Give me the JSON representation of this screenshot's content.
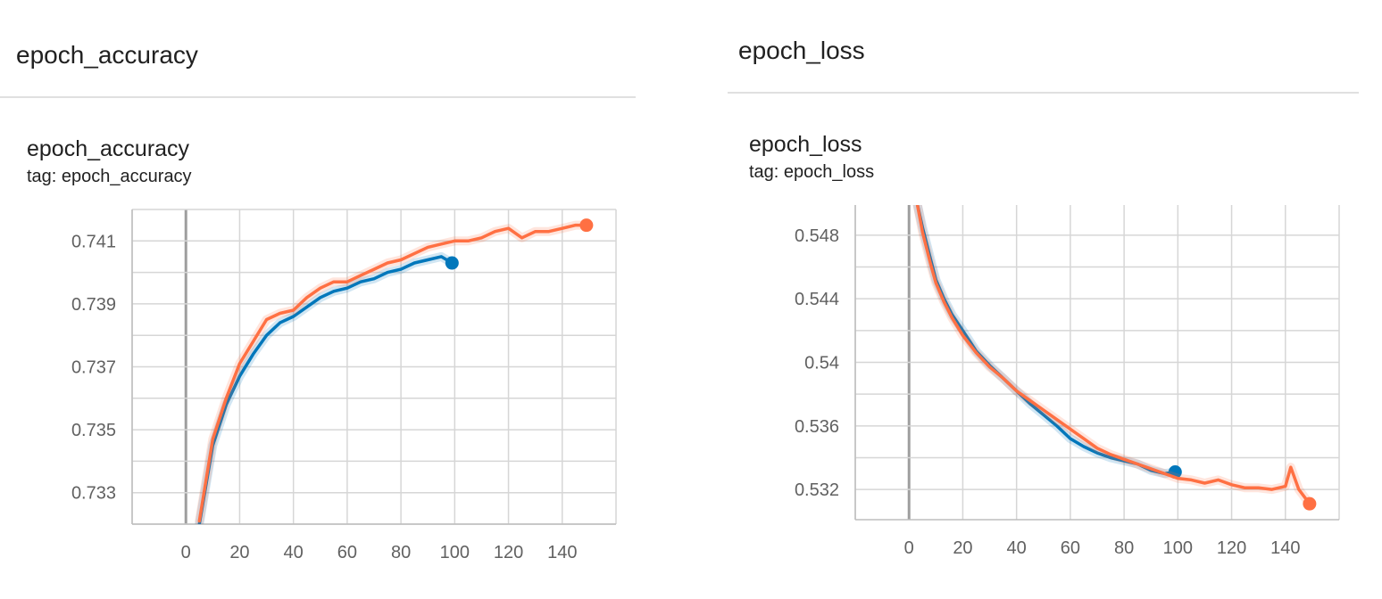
{
  "panels": {
    "accuracy": {
      "group_title": "epoch_accuracy",
      "card_title": "epoch_accuracy",
      "tag": "tag: epoch_accuracy"
    },
    "loss": {
      "group_title": "epoch_loss",
      "card_title": "epoch_loss",
      "tag": "tag: epoch_loss"
    }
  },
  "colors": {
    "blue": "#0077bb",
    "orange": "#ff7043"
  },
  "chart_data": [
    {
      "type": "line",
      "title": "epoch_accuracy",
      "xlabel": "",
      "ylabel": "",
      "xlim": [
        -20,
        160
      ],
      "ylim": [
        0.732,
        0.742
      ],
      "x_ticks": [
        "0",
        "20",
        "40",
        "60",
        "80",
        "100",
        "120",
        "140"
      ],
      "y_ticks": [
        "0.733",
        "0.735",
        "0.737",
        "0.739",
        "0.741"
      ],
      "grid": true,
      "series": [
        {
          "color": "#0077bb",
          "x": [
            5,
            10,
            15,
            20,
            25,
            30,
            35,
            40,
            45,
            50,
            55,
            60,
            65,
            70,
            75,
            80,
            85,
            90,
            95,
            99
          ],
          "values": [
            0.732,
            0.7345,
            0.7358,
            0.7367,
            0.7374,
            0.738,
            0.7384,
            0.7386,
            0.7389,
            0.7392,
            0.7394,
            0.7395,
            0.7397,
            0.7398,
            0.74,
            0.7401,
            0.7403,
            0.7404,
            0.7405,
            0.7403
          ]
        },
        {
          "color": "#ff7043",
          "x": [
            5,
            10,
            15,
            20,
            25,
            30,
            35,
            40,
            45,
            50,
            55,
            60,
            65,
            70,
            75,
            80,
            85,
            90,
            95,
            100,
            105,
            110,
            115,
            120,
            125,
            130,
            135,
            140,
            145,
            149
          ],
          "values": [
            0.7321,
            0.7347,
            0.736,
            0.7371,
            0.7378,
            0.7385,
            0.7387,
            0.7388,
            0.7392,
            0.7395,
            0.7397,
            0.7397,
            0.7399,
            0.7401,
            0.7403,
            0.7404,
            0.7406,
            0.7408,
            0.7409,
            0.741,
            0.741,
            0.7411,
            0.7413,
            0.7414,
            0.7411,
            0.7413,
            0.7413,
            0.7414,
            0.7415,
            0.7415
          ]
        }
      ]
    },
    {
      "type": "line",
      "title": "epoch_loss",
      "xlabel": "",
      "ylabel": "",
      "xlim": [
        -20,
        160
      ],
      "ylim": [
        0.5301,
        0.5499
      ],
      "x_ticks": [
        "0",
        "20",
        "40",
        "60",
        "80",
        "100",
        "120",
        "140"
      ],
      "y_ticks": [
        "0.532",
        "0.536",
        "0.54",
        "0.544",
        "0.548"
      ],
      "grid": true,
      "series": [
        {
          "color": "#0077bb",
          "x": [
            3,
            5,
            8,
            10,
            13,
            16,
            20,
            25,
            30,
            35,
            40,
            45,
            50,
            55,
            60,
            65,
            70,
            75,
            80,
            85,
            90,
            95,
            99
          ],
          "values": [
            0.55,
            0.5485,
            0.5465,
            0.5452,
            0.544,
            0.543,
            0.542,
            0.5407,
            0.5398,
            0.539,
            0.5382,
            0.5374,
            0.5367,
            0.536,
            0.5352,
            0.5347,
            0.5343,
            0.534,
            0.5338,
            0.5336,
            0.5332,
            0.533,
            0.5331
          ]
        },
        {
          "color": "#ff7043",
          "x": [
            3,
            5,
            8,
            10,
            13,
            16,
            20,
            25,
            30,
            35,
            40,
            45,
            50,
            55,
            60,
            65,
            70,
            75,
            80,
            85,
            90,
            95,
            100,
            105,
            110,
            115,
            120,
            125,
            130,
            135,
            140,
            142,
            145,
            149
          ],
          "values": [
            0.55,
            0.5482,
            0.5462,
            0.545,
            0.5438,
            0.5428,
            0.5417,
            0.5406,
            0.5397,
            0.539,
            0.5382,
            0.5376,
            0.537,
            0.5364,
            0.5358,
            0.5352,
            0.5346,
            0.5342,
            0.5339,
            0.5336,
            0.5333,
            0.533,
            0.5327,
            0.5326,
            0.5324,
            0.5326,
            0.5323,
            0.5321,
            0.5321,
            0.532,
            0.5322,
            0.5334,
            0.532,
            0.5311
          ]
        }
      ]
    }
  ]
}
